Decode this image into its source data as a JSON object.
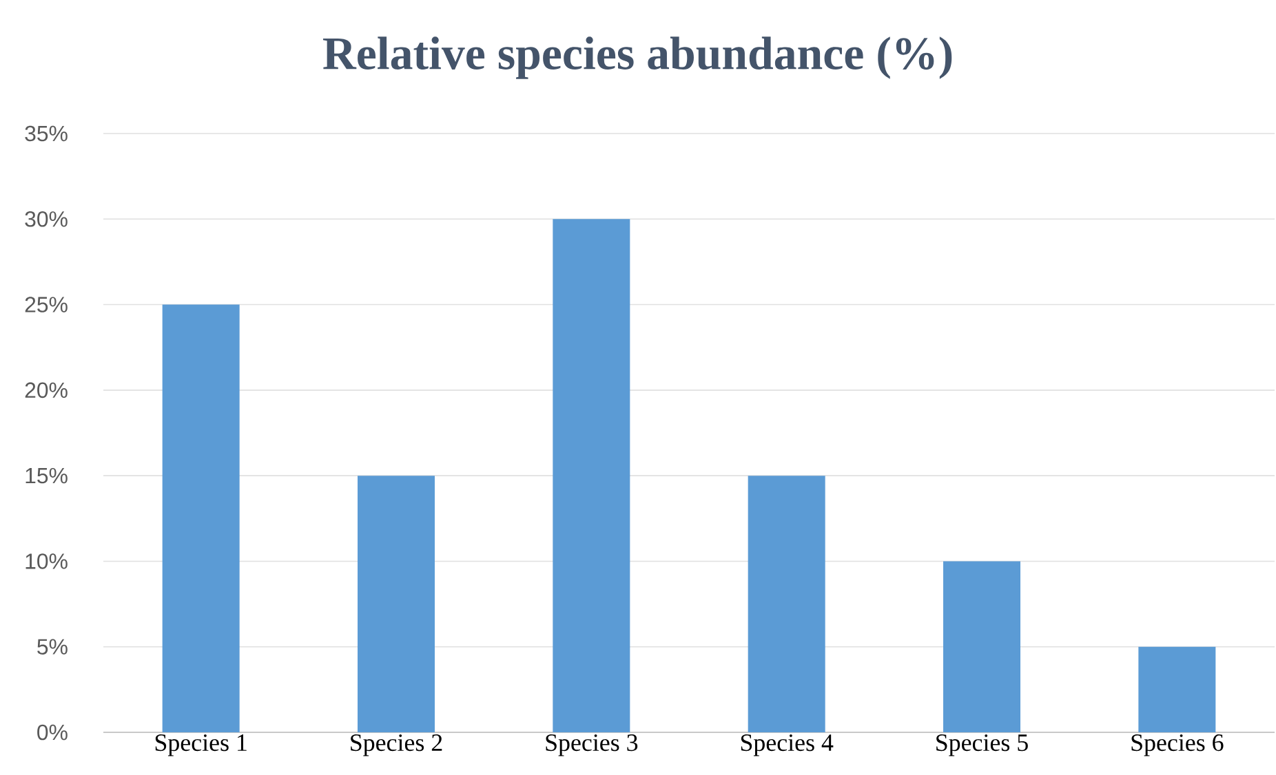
{
  "chart_data": {
    "type": "bar",
    "title": "Relative species abundance (%)",
    "categories": [
      "Species 1",
      "Species 2",
      "Species 3",
      "Species 4",
      "Species 5",
      "Species 6"
    ],
    "values": [
      25,
      15,
      30,
      15,
      10,
      5
    ],
    "color": "#5b9bd5",
    "ylim": [
      0,
      35
    ],
    "yticks": [
      {
        "value": 0,
        "label": "0%"
      },
      {
        "value": 5,
        "label": "5%"
      },
      {
        "value": 10,
        "label": "10%"
      },
      {
        "value": 15,
        "label": "15%"
      },
      {
        "value": 20,
        "label": "20%"
      },
      {
        "value": 25,
        "label": "25%"
      },
      {
        "value": 30,
        "label": "30%"
      },
      {
        "value": 35,
        "label": "35%"
      }
    ],
    "grid": true
  }
}
